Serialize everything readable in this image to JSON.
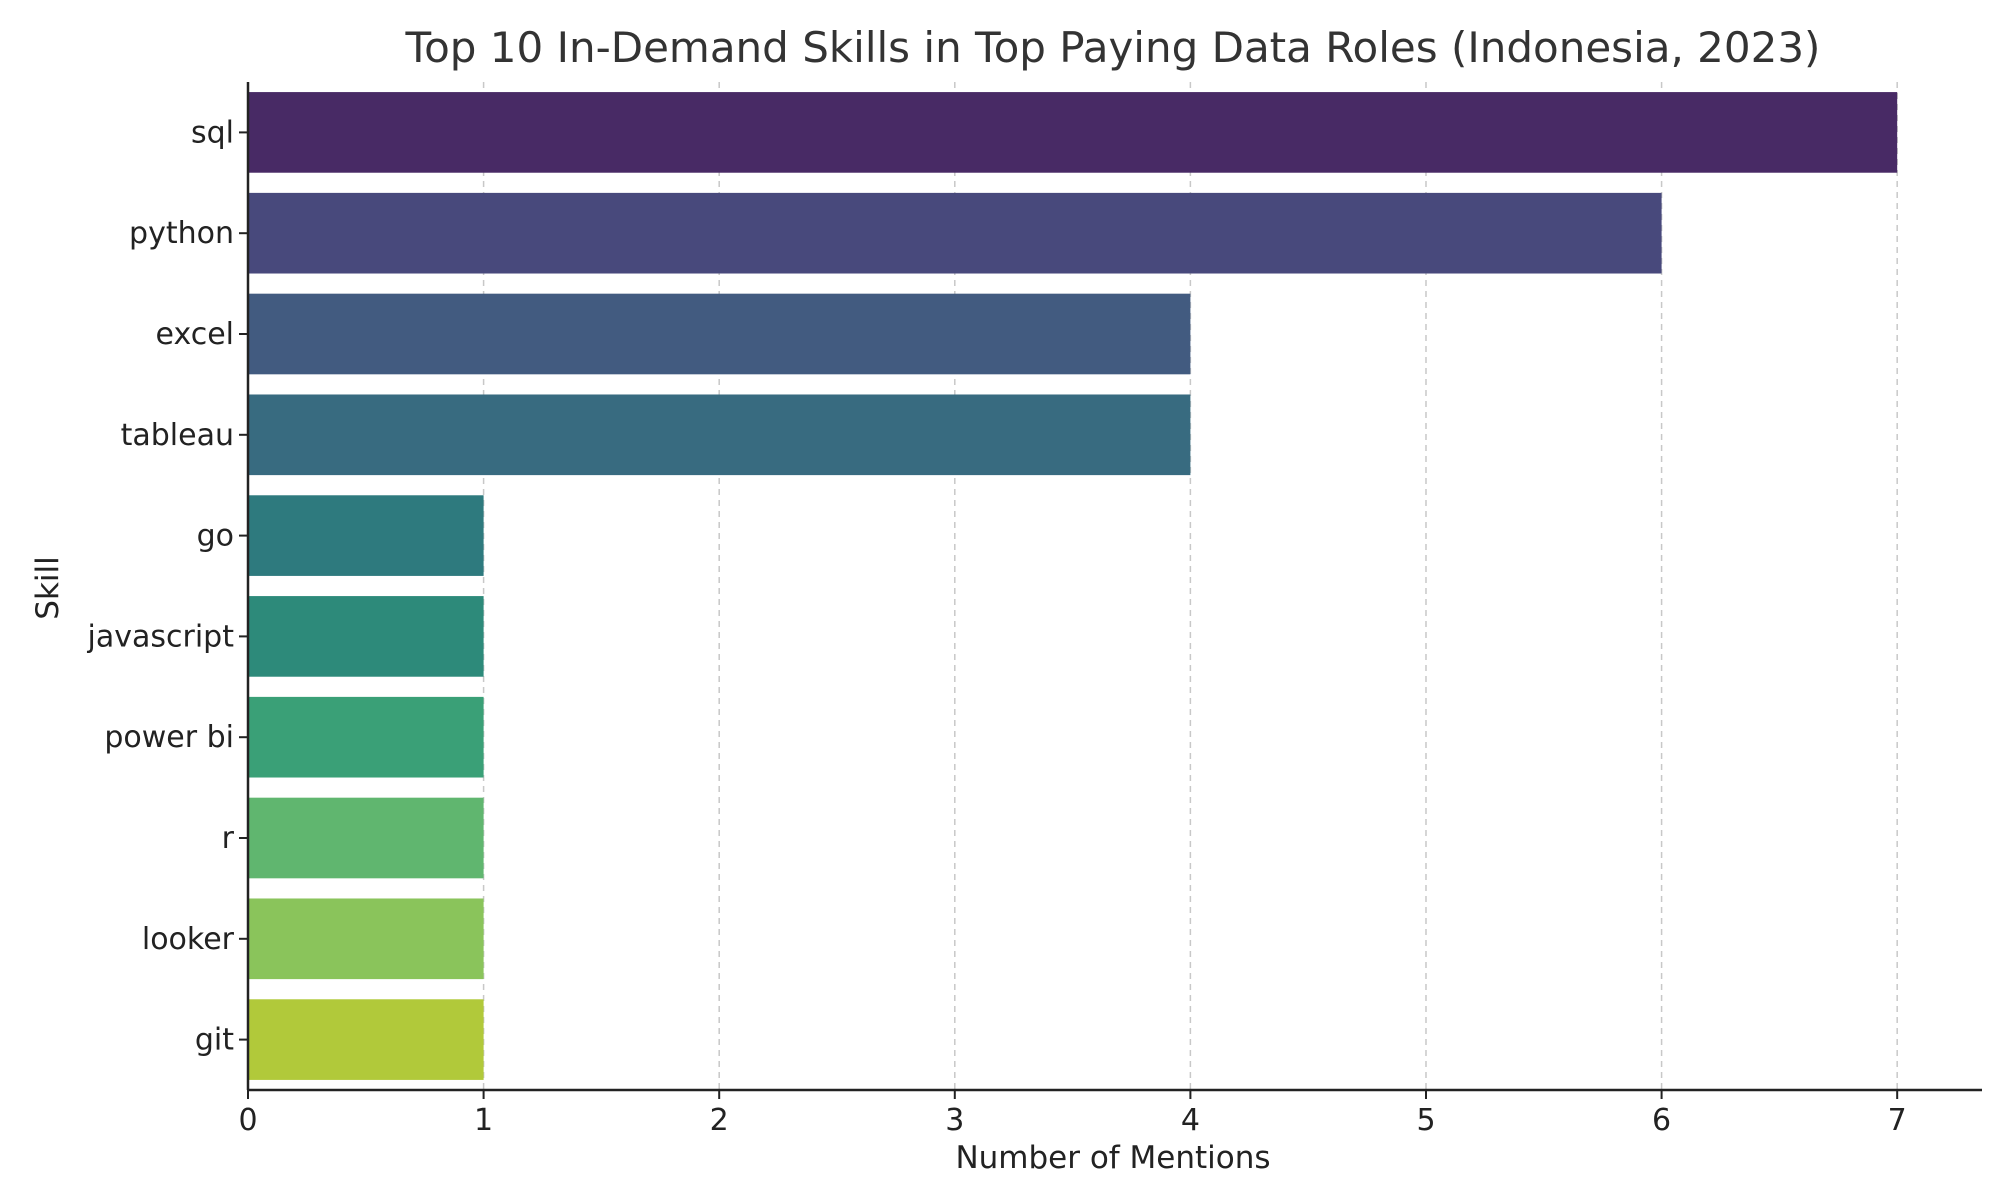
{
  "chart_data": {
    "type": "bar",
    "orientation": "horizontal",
    "title": "Top 10 In-Demand Skills in Top Paying Data Roles (Indonesia, 2023)",
    "xlabel": "Number of Mentions",
    "ylabel": "Skill",
    "categories": [
      "sql",
      "python",
      "excel",
      "tableau",
      "go",
      "javascript",
      "power bi",
      "r",
      "looker",
      "git"
    ],
    "values": [
      7,
      6,
      4,
      4,
      1,
      1,
      1,
      1,
      1,
      1
    ],
    "colors": [
      "#482a65",
      "#48497c",
      "#425b80",
      "#386b80",
      "#2e7a7e",
      "#2d8a7a",
      "#3aa077",
      "#60b66f",
      "#8ac45b",
      "#b1c93a"
    ],
    "xlim": [
      0,
      7.36
    ],
    "xticks": [
      0,
      1,
      2,
      3,
      4,
      5,
      6,
      7
    ],
    "grid": "x-dashed",
    "legend": "none"
  }
}
